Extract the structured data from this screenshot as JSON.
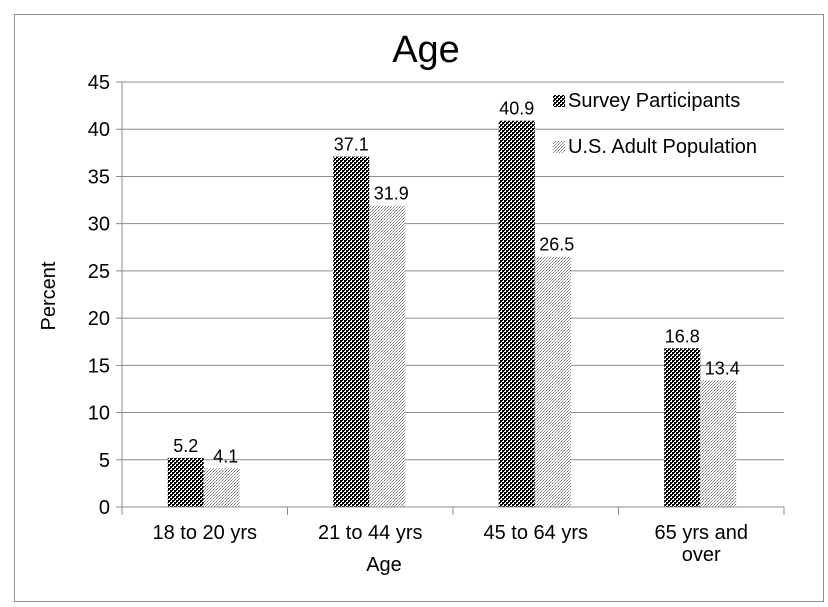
{
  "chart_data": {
    "type": "bar",
    "title": "Age",
    "xlabel": "Age",
    "ylabel": "Percent",
    "ylim": [
      0,
      45
    ],
    "yticks": [
      "0",
      "5",
      "10",
      "15",
      "20",
      "25",
      "30",
      "35",
      "40",
      "45"
    ],
    "grid": true,
    "legend_position": "top-right",
    "categories": [
      [
        "18 to 20 yrs"
      ],
      [
        "21 to 44 yrs"
      ],
      [
        "45 to 64 yrs"
      ],
      [
        "65 yrs and",
        "over"
      ]
    ],
    "series": [
      {
        "name": "Survey Participants",
        "values": [
          5.2,
          37.1,
          40.9,
          16.8
        ],
        "pattern": "dense-checker"
      },
      {
        "name": "U.S. Adult Population",
        "values": [
          4.1,
          31.9,
          26.5,
          13.4
        ],
        "pattern": "light-dots"
      }
    ],
    "colors": {
      "bar_dark": "#000000",
      "bar_light": "#7a7a7a",
      "grid": "#8c8c8c",
      "axis": "#8c8c8c"
    }
  }
}
